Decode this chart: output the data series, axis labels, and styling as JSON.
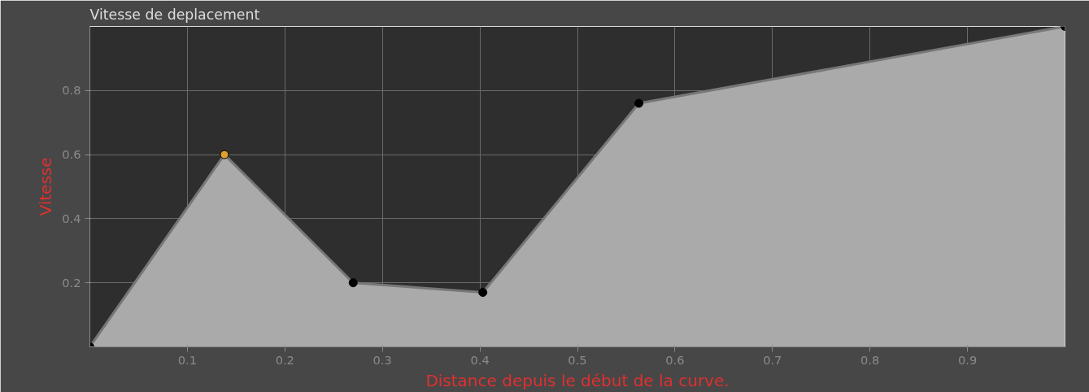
{
  "chart_data": {
    "type": "area",
    "title": "Vitesse de deplacement",
    "xlabel": "Distance depuis le début de la curve.",
    "ylabel": "Vitesse",
    "xlim": [
      0,
      1
    ],
    "ylim": [
      0,
      1
    ],
    "xticks": [
      0.1,
      0.2,
      0.3,
      0.4,
      0.5,
      0.6,
      0.7,
      0.8,
      0.9
    ],
    "yticks": [
      0.2,
      0.4,
      0.6,
      0.8
    ],
    "grid": true,
    "marker": "circle",
    "x": [
      0,
      0.138,
      0.27,
      0.403,
      0.563,
      1.0
    ],
    "series": [
      {
        "color": "#aaaaaa",
        "colors": [
          "#000000",
          "#e0a030",
          "#000000",
          "#000000",
          "#000000",
          "#000000"
        ],
        "values": [
          0,
          0.6,
          0.2,
          0.17,
          0.76,
          1.0
        ]
      }
    ]
  }
}
